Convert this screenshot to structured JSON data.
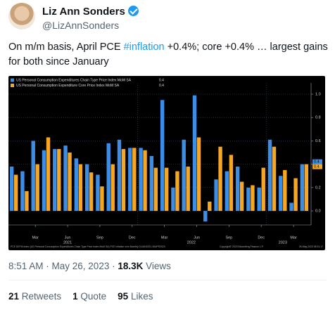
{
  "author": {
    "name": "Liz Ann Sonders",
    "handle": "@LizAnnSonders"
  },
  "tweet": {
    "text_before": "On m/m basis, April PCE ",
    "hashtag": "#inflation",
    "text_after": " +0.4%; core +0.4% … largest gains for both since January"
  },
  "chart_data": {
    "type": "bar",
    "categories": [
      null,
      null,
      "Mar",
      null,
      null,
      "Jun",
      null,
      null,
      "Sep",
      null,
      null,
      "Dec",
      null,
      null,
      "Mar",
      null,
      null,
      "Jun",
      null,
      null,
      "Sep",
      null,
      null,
      "Dec",
      null,
      null,
      "Mar",
      null
    ],
    "years": [
      "2021",
      "2022",
      "2023"
    ],
    "series": [
      {
        "name": "US Personal Consumption Expenditures Chain Type Price Index MoM SA",
        "color": "#3b8de6",
        "values": [
          0.38,
          0.34,
          0.6,
          0.52,
          0.53,
          0.56,
          0.45,
          0.4,
          0.31,
          0.58,
          0.61,
          0.54,
          0.54,
          0.47,
          0.95,
          0.2,
          0.61,
          0.99,
          -0.09,
          0.27,
          0.34,
          0.38,
          0.2,
          0.2,
          0.61,
          0.3,
          0.07,
          0.4
        ]
      },
      {
        "name": "US Personal Consumption Expenditure Core Price Index MoM SA",
        "color": "#f5a623",
        "values": [
          0.31,
          0.17,
          0.4,
          0.63,
          0.53,
          0.5,
          0.4,
          0.33,
          0.21,
          0.4,
          0.53,
          0.54,
          0.52,
          0.37,
          0.37,
          0.34,
          0.38,
          0.63,
          0.08,
          0.55,
          0.48,
          0.25,
          0.22,
          0.37,
          0.55,
          0.35,
          0.28,
          0.4
        ]
      }
    ],
    "ylim": [
      -0.12,
      1.06
    ],
    "yticks": [
      {
        "value": 0,
        "label": "0.0"
      },
      0.2,
      0.4,
      0.6,
      0.8,
      {
        "value": 1,
        "label": "1.0"
      }
    ],
    "grid": true,
    "source": "PCE DEFM Index (US Personal Consumption Expenditures Chain Type Price Index MoM SA) PCE Inflation m/m  Monthly 01JAN2021-30APR2023",
    "copyright": "Copyright© 2023 Bloomberg Finance L.P.",
    "stamp": "26-May-2023 08:31:17"
  },
  "meta": {
    "timestamp": "8:51 AM · May 26, 2023 ·",
    "views": "18.3K",
    "views_label": "Views"
  },
  "stats": [
    {
      "count": "21",
      "label": "Retweets"
    },
    {
      "count": "1",
      "label": "Quote"
    },
    {
      "count": "95",
      "label": "Likes"
    }
  ]
}
